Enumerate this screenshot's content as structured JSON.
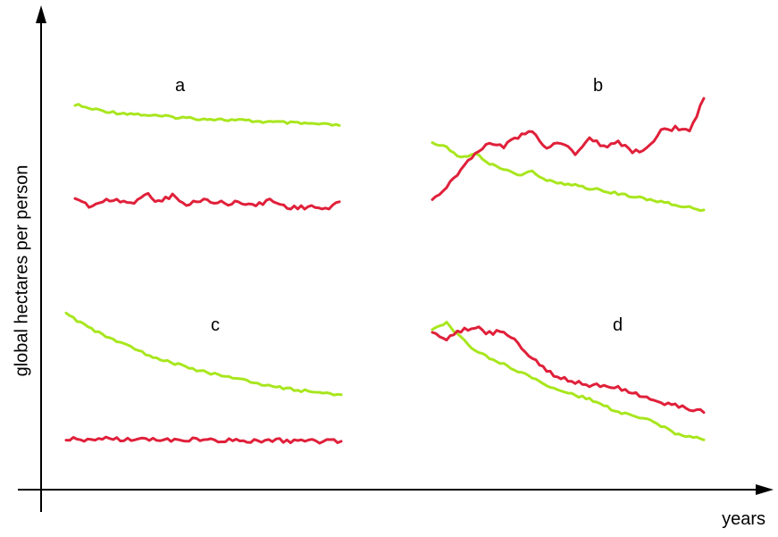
{
  "chart_data": {
    "type": "line",
    "ylabel": "global hectares per person",
    "xlabel": "years",
    "colors": {
      "green": "#a8e61e",
      "red": "#e0203a",
      "axis": "#000000"
    },
    "panels": [
      {
        "label": "a",
        "series": [
          {
            "color": "green",
            "values": [
              9.0,
              8.9,
              8.85,
              8.8,
              8.78,
              8.75,
              8.72,
              8.7,
              8.68,
              8.66,
              8.65,
              8.63,
              8.62,
              8.6,
              8.58,
              8.57,
              8.55,
              8.54,
              8.52,
              8.5
            ]
          },
          {
            "color": "red",
            "values": [
              6.8,
              6.6,
              6.7,
              6.75,
              6.65,
              6.9,
              6.7,
              6.85,
              6.6,
              6.75,
              6.7,
              6.65,
              6.7,
              6.6,
              6.75,
              6.6,
              6.55,
              6.6,
              6.5,
              6.7
            ]
          }
        ]
      },
      {
        "label": "b",
        "series": [
          {
            "color": "green",
            "values": [
              7.7,
              7.6,
              7.4,
              7.5,
              7.3,
              7.2,
              7.1,
              7.15,
              7.0,
              6.95,
              6.9,
              6.85,
              6.8,
              6.75,
              6.7,
              6.65,
              6.6,
              6.55,
              6.5,
              6.45
            ]
          },
          {
            "color": "red",
            "values": [
              6.6,
              6.9,
              7.2,
              7.5,
              7.7,
              7.6,
              7.8,
              7.9,
              7.6,
              7.7,
              7.5,
              7.8,
              7.6,
              7.7,
              7.5,
              7.6,
              7.9,
              7.95,
              7.9,
              8.5
            ]
          }
        ]
      },
      {
        "label": "c",
        "series": [
          {
            "color": "green",
            "values": [
              8.5,
              8.2,
              7.95,
              7.7,
              7.5,
              7.3,
              7.1,
              6.95,
              6.8,
              6.65,
              6.55,
              6.45,
              6.35,
              6.25,
              6.15,
              6.08,
              6.0,
              5.95,
              5.9,
              5.85
            ]
          },
          {
            "color": "red",
            "values": [
              4.4,
              4.38,
              4.39,
              4.4,
              4.38,
              4.39,
              4.37,
              4.38,
              4.36,
              4.37,
              4.35,
              4.36,
              4.34,
              4.33,
              4.35,
              4.34,
              4.33,
              4.32,
              4.33,
              4.32
            ]
          }
        ]
      },
      {
        "label": "d",
        "series": [
          {
            "color": "green",
            "values": [
              8.2,
              8.3,
              8.1,
              7.9,
              7.8,
              7.7,
              7.6,
              7.5,
              7.4,
              7.3,
              7.25,
              7.2,
              7.1,
              7.0,
              6.95,
              6.9,
              6.8,
              6.7,
              6.65,
              6.6
            ]
          },
          {
            "color": "red",
            "values": [
              8.2,
              8.05,
              8.2,
              8.25,
              8.15,
              8.2,
              8.0,
              7.8,
              7.6,
              7.5,
              7.45,
              7.4,
              7.38,
              7.35,
              7.3,
              7.2,
              7.15,
              7.1,
              7.05,
              7.0
            ]
          }
        ]
      }
    ]
  }
}
